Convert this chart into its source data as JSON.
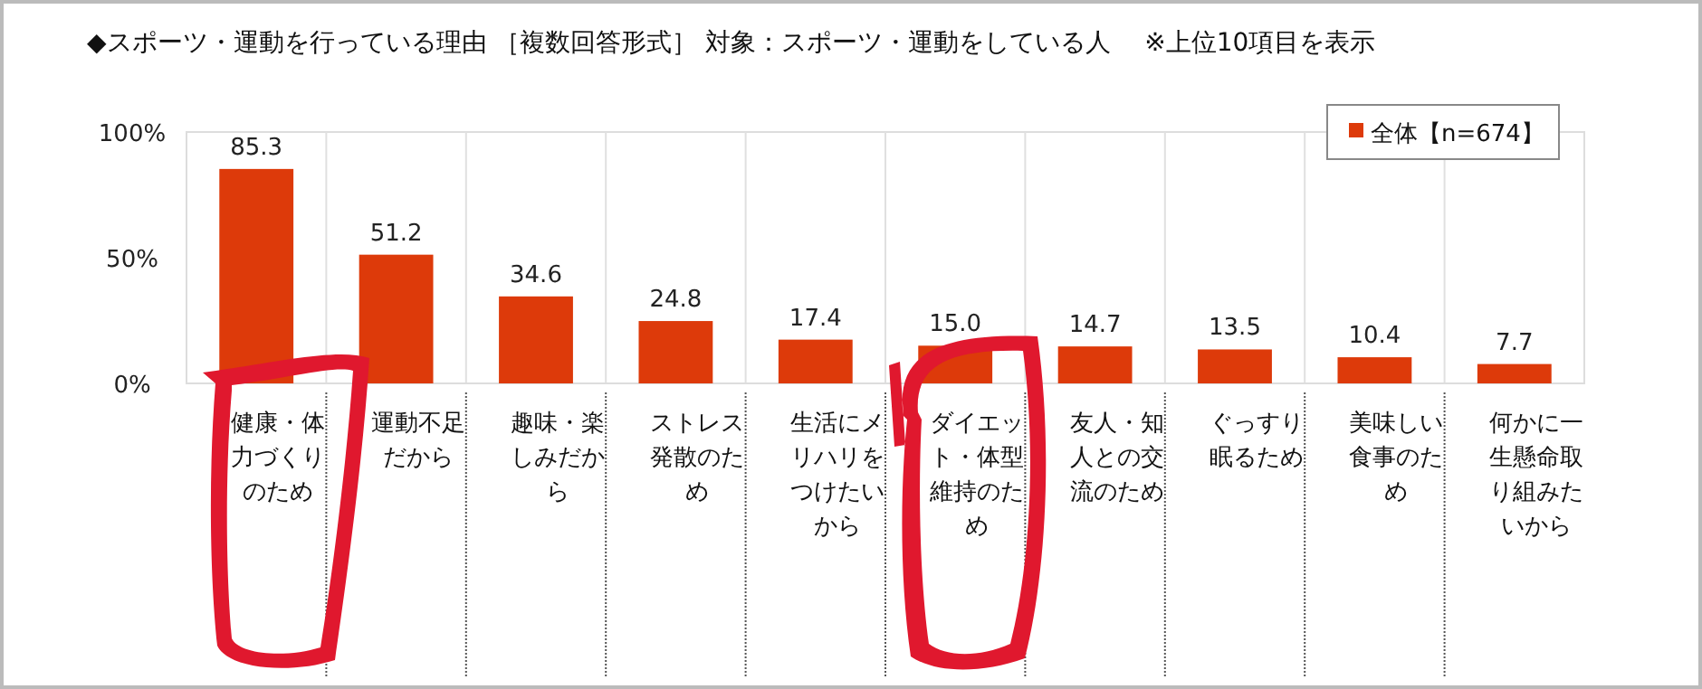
{
  "chart_data": {
    "type": "bar",
    "title": "◆スポーツ・運動を行っている理由 ［複数回答形式］ 対象：スポーツ・運動をしている人 　※上位10項目を表示",
    "categories": [
      "健康・体力づくりのため",
      "運動不足だから",
      "趣味・楽しみだから",
      "ストレス発散のため",
      "生活にメリハリをつけたいから",
      "ダイエット・体型維持のため",
      "友人・知人との交流のため",
      "ぐっすり眠るため",
      "美味しい食事のため",
      "何かに一生懸命取り組みたいから"
    ],
    "series": [
      {
        "name": "全体【n=674】",
        "color": "#dd3a0a",
        "values": [
          85.3,
          51.2,
          34.6,
          24.8,
          17.4,
          15.0,
          14.7,
          13.5,
          10.4,
          7.7
        ],
        "value_labels": [
          "85.3",
          "51.2",
          "34.6",
          "24.8",
          "17.4",
          "15.0",
          "14.7",
          "13.5",
          "10.4",
          "7.7"
        ]
      }
    ],
    "ylim": [
      0,
      100
    ],
    "yticks": [
      {
        "value": 0,
        "label": "0%"
      },
      {
        "value": 50,
        "label": "50%"
      },
      {
        "value": 100,
        "label": "100%"
      }
    ],
    "legend": "top right"
  }
}
